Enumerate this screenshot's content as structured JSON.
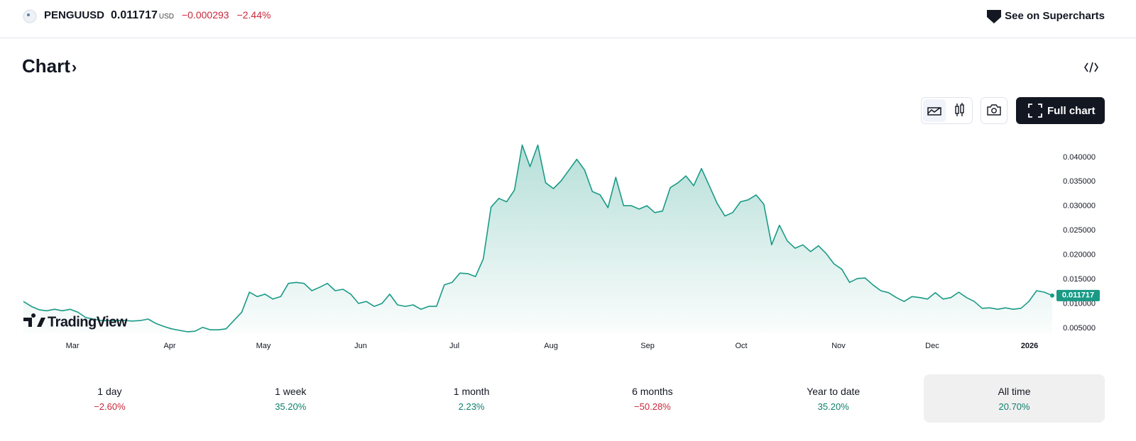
{
  "header": {
    "symbol": "PENGUUSD",
    "price": "0.011717",
    "currency": "USD",
    "change": "−0.000293",
    "change_percent": "−2.44%",
    "link": "See on Supercharts"
  },
  "section_title": "Chart",
  "full_chart_button": "Full chart",
  "watermark": "TradingView",
  "chart_data": {
    "type": "area",
    "color": "#1a9a86",
    "values": [
      0.0105,
      0.0095,
      0.0088,
      0.0086,
      0.0089,
      0.0086,
      0.0089,
      0.0083,
      0.0072,
      0.0069,
      0.0066,
      0.0066,
      0.0066,
      0.0066,
      0.0065,
      0.0066,
      0.0069,
      0.006,
      0.0054,
      0.0049,
      0.0046,
      0.0043,
      0.0044,
      0.0052,
      0.0047,
      0.0047,
      0.0049,
      0.0066,
      0.0083,
      0.0124,
      0.0115,
      0.012,
      0.011,
      0.0115,
      0.0142,
      0.0144,
      0.0142,
      0.0127,
      0.0134,
      0.0142,
      0.0127,
      0.013,
      0.012,
      0.0101,
      0.0105,
      0.0095,
      0.0101,
      0.012,
      0.0098,
      0.0095,
      0.0098,
      0.0089,
      0.0095,
      0.0095,
      0.0139,
      0.0144,
      0.0163,
      0.0162,
      0.0156,
      0.0192,
      0.0298,
      0.0316,
      0.0309,
      0.0333,
      0.0425,
      0.0381,
      0.0425,
      0.0348,
      0.0336,
      0.0352,
      0.0374,
      0.0396,
      0.0374,
      0.033,
      0.0323,
      0.0297,
      0.0359,
      0.0301,
      0.0301,
      0.0294,
      0.0301,
      0.0287,
      0.029,
      0.0338,
      0.0348,
      0.0362,
      0.0342,
      0.0377,
      0.0342,
      0.0306,
      0.028,
      0.0287,
      0.0309,
      0.0313,
      0.0323,
      0.0304,
      0.0221,
      0.0261,
      0.0229,
      0.0214,
      0.0221,
      0.0207,
      0.0219,
      0.0203,
      0.0182,
      0.0171,
      0.0144,
      0.0152,
      0.0153,
      0.0139,
      0.0127,
      0.0123,
      0.0113,
      0.0105,
      0.0115,
      0.0113,
      0.011,
      0.0123,
      0.011,
      0.0113,
      0.0124,
      0.0113,
      0.0105,
      0.0091,
      0.0092,
      0.0089,
      0.0092,
      0.0089,
      0.0091,
      0.0105,
      0.0127,
      0.0124,
      0.011717
    ],
    "xlim": [
      0,
      132
    ],
    "xticks": [
      {
        "value": 6.29,
        "label": "Mar"
      },
      {
        "value": 18.77,
        "label": "Apr"
      },
      {
        "value": 30.79,
        "label": "May"
      },
      {
        "value": 43.27,
        "label": "Jun"
      },
      {
        "value": 55.3,
        "label": "Jul"
      },
      {
        "value": 67.69,
        "label": "Aug"
      },
      {
        "value": 80.08,
        "label": "Sep"
      },
      {
        "value": 92.1,
        "label": "Oct"
      },
      {
        "value": 104.58,
        "label": "Nov"
      },
      {
        "value": 116.6,
        "label": "Dec"
      },
      {
        "value": 129.09,
        "label": "2026"
      }
    ],
    "ylim": [
      0.004,
      0.0439
    ],
    "yticks": [
      {
        "value": 0.005,
        "label": "0.005000"
      },
      {
        "value": 0.01,
        "label": "0.010000"
      },
      {
        "value": 0.015,
        "label": "0.015000"
      },
      {
        "value": 0.02,
        "label": "0.020000"
      },
      {
        "value": 0.025,
        "label": "0.025000"
      },
      {
        "value": 0.03,
        "label": "0.030000"
      },
      {
        "value": 0.035,
        "label": "0.035000"
      },
      {
        "value": 0.04,
        "label": "0.040000"
      }
    ],
    "grid": false
  },
  "periods": [
    {
      "label": "1 day",
      "value": "−2.60%"
    },
    {
      "label": "1 week",
      "value": "35.20%"
    },
    {
      "label": "1 month",
      "value": "2.23%"
    },
    {
      "label": "6 months",
      "value": "−50.28%"
    },
    {
      "label": "Year to date",
      "value": "35.20%"
    },
    {
      "label": "All time",
      "value": "20.70%"
    }
  ],
  "selected_period": 5
}
